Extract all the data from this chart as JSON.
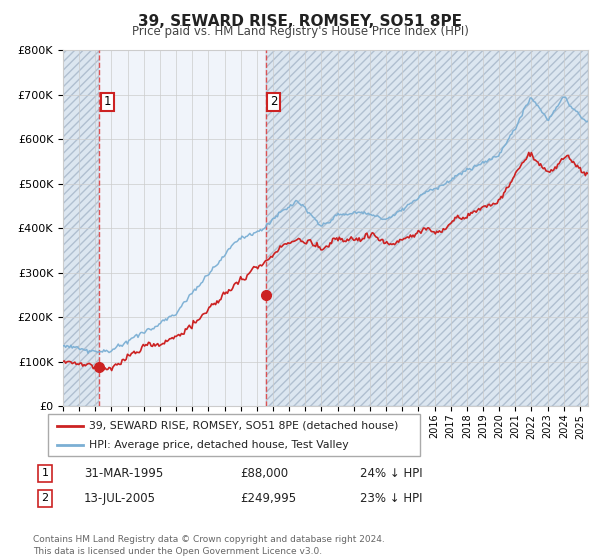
{
  "title": "39, SEWARD RISE, ROMSEY, SO51 8PE",
  "subtitle": "Price paid vs. HM Land Registry's House Price Index (HPI)",
  "ylim": [
    0,
    800000
  ],
  "yticks": [
    0,
    100000,
    200000,
    300000,
    400000,
    500000,
    600000,
    700000,
    800000
  ],
  "ytick_labels": [
    "£0",
    "£100K",
    "£200K",
    "£300K",
    "£400K",
    "£500K",
    "£600K",
    "£700K",
    "£800K"
  ],
  "xlim_start": 1993,
  "xlim_end": 2025.5,
  "sale1_date": 1995.25,
  "sale1_price": 88000,
  "sale2_date": 2005.54,
  "sale2_price": 249995,
  "legend_line1": "39, SEWARD RISE, ROMSEY, SO51 8PE (detached house)",
  "legend_line2": "HPI: Average price, detached house, Test Valley",
  "footer": "Contains HM Land Registry data © Crown copyright and database right 2024.\nThis data is licensed under the Open Government Licence v3.0.",
  "hpi_color": "#7bafd4",
  "price_color": "#cc2222",
  "hatch_bg_color": "#dce6f0",
  "chart_bg_color": "#f0f4fa",
  "grid_color": "#cccccc",
  "label_box_color": "#cc2222"
}
